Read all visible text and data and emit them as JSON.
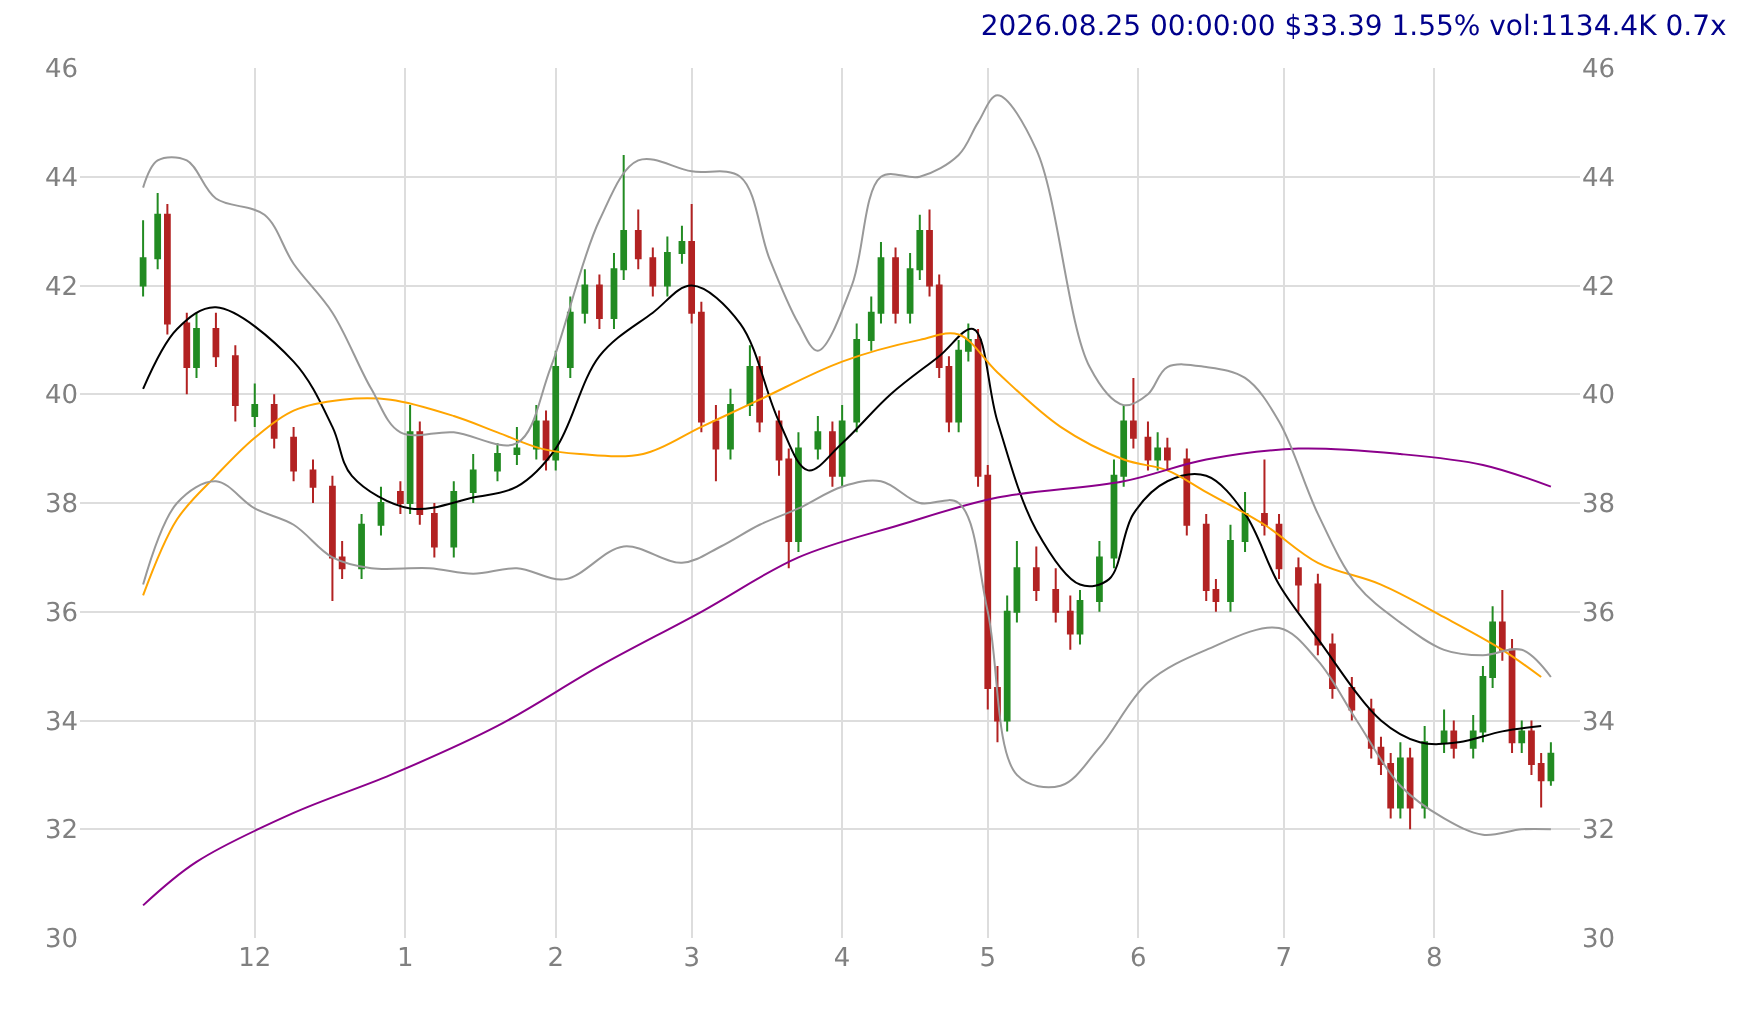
{
  "chart_data": {
    "type": "candlestick",
    "title": "2026.08.25 00:00:00 $33.39 1.55% vol:1134.4K 0.7x",
    "xlim": [
      "2025-10-26",
      "2026-08-31"
    ],
    "xticks": [
      {
        "value": "2025-12-01",
        "label": "12"
      },
      {
        "value": "2026-01-01",
        "label": "1"
      },
      {
        "value": "2026-02-01",
        "label": "2"
      },
      {
        "value": "2026-03-01",
        "label": "3"
      },
      {
        "value": "2026-04-01",
        "label": "4"
      },
      {
        "value": "2026-05-01",
        "label": "5"
      },
      {
        "value": "2026-06-01",
        "label": "6"
      },
      {
        "value": "2026-07-01",
        "label": "7"
      },
      {
        "value": "2026-08-01",
        "label": "8"
      }
    ],
    "ylim": [
      30,
      46
    ],
    "yticks": [
      30,
      32,
      34,
      36,
      38,
      40,
      42,
      44,
      46
    ],
    "y2lim": [
      30,
      46
    ],
    "y2ticks": [
      30,
      32,
      34,
      36,
      38,
      40,
      42,
      44,
      46
    ],
    "grid": true,
    "series": [
      {
        "type": "candlestick",
        "colors": [
          "#228b22",
          "#228b22",
          "#b22222",
          "#b22222",
          "#228b22",
          "#b22222",
          "#b22222",
          "#228b22",
          "#b22222",
          "#b22222",
          "#b22222",
          "#b22222",
          "#b22222",
          "#228b22",
          "#228b22",
          "#b22222",
          "#228b22",
          "#b22222",
          "#b22222",
          "#228b22",
          "#228b22",
          "#228b22",
          "#228b22",
          "#228b22",
          "#b22222",
          "#228b22",
          "#228b22",
          "#228b22",
          "#b22222",
          "#228b22",
          "#228b22",
          "#b22222",
          "#b22222",
          "#228b22",
          "#228b22",
          "#b22222",
          "#b22222",
          "#b22222",
          "#228b22",
          "#228b22",
          "#b22222",
          "#b22222",
          "#b22222",
          "#228b22",
          "#228b22",
          "#b22222",
          "#228b22",
          "#228b22",
          "#228b22",
          "#228b22",
          "#b22222",
          "#228b22",
          "#228b22",
          "#b22222",
          "#b22222",
          "#b22222",
          "#228b22",
          "#228b22",
          "#b22222",
          "#b22222",
          "#b22222",
          "#228b22",
          "#228b22",
          "#b22222",
          "#b22222",
          "#b22222",
          "#228b22",
          "#228b22",
          "#228b22",
          "#228b22",
          "#b22222",
          "#b22222",
          "#228b22",
          "#b22222",
          "#b22222",
          "#b22222",
          "#b22222",
          "#228b22",
          "#228b22",
          "#b22222",
          "#b22222",
          "#b22222",
          "#b22222",
          "#b22222",
          "#b22222",
          "#b22222",
          "#b22222",
          "#b22222",
          "#228b22",
          "#b22222",
          "#228b22",
          "#228b22",
          "#b22222",
          "#228b22",
          "#228b22",
          "#228b22",
          "#b22222",
          "#b22222",
          "#228b22",
          "#b22222",
          "#b22222",
          "#228b22"
        ],
        "x": [
          "2025-11-08",
          "2025-11-11",
          "2025-11-13",
          "2025-11-17",
          "2025-11-19",
          "2025-11-23",
          "2025-11-27",
          "2025-12-01",
          "2025-12-05",
          "2025-12-09",
          "2025-12-13",
          "2025-12-17",
          "2025-12-19",
          "2025-12-23",
          "2025-12-27",
          "2025-12-31",
          "2026-01-02",
          "2026-01-04",
          "2026-01-07",
          "2026-01-11",
          "2026-01-15",
          "2026-01-20",
          "2026-01-24",
          "2026-01-28",
          "2026-01-30",
          "2026-02-01",
          "2026-02-04",
          "2026-02-07",
          "2026-02-10",
          "2026-02-13",
          "2026-02-15",
          "2026-02-18",
          "2026-02-21",
          "2026-02-24",
          "2026-02-27",
          "2026-03-01",
          "2026-03-03",
          "2026-03-06",
          "2026-03-09",
          "2026-03-13",
          "2026-03-15",
          "2026-03-19",
          "2026-03-21",
          "2026-03-23",
          "2026-03-27",
          "2026-03-30",
          "2026-04-01",
          "2026-04-04",
          "2026-04-07",
          "2026-04-09",
          "2026-04-12",
          "2026-04-15",
          "2026-04-17",
          "2026-04-19",
          "2026-04-21",
          "2026-04-23",
          "2026-04-25",
          "2026-04-27",
          "2026-04-29",
          "2026-05-01",
          "2026-05-03",
          "2026-05-05",
          "2026-05-07",
          "2026-05-11",
          "2026-05-15",
          "2026-05-18",
          "2026-05-20",
          "2026-05-24",
          "2026-05-27",
          "2026-05-29",
          "2026-05-31",
          "2026-06-03",
          "2026-06-05",
          "2026-06-07",
          "2026-06-11",
          "2026-06-15",
          "2026-06-17",
          "2026-06-20",
          "2026-06-23",
          "2026-06-27",
          "2026-06-30",
          "2026-07-04",
          "2026-07-08",
          "2026-07-11",
          "2026-07-15",
          "2026-07-19",
          "2026-07-21",
          "2026-07-23",
          "2026-07-25",
          "2026-07-27",
          "2026-07-30",
          "2026-08-03",
          "2026-08-05",
          "2026-08-09",
          "2026-08-11",
          "2026-08-13",
          "2026-08-15",
          "2026-08-17",
          "2026-08-19",
          "2026-08-21",
          "2026-08-23",
          "2026-08-25"
        ],
        "ohlc": [
          [
            42.0,
            43.2,
            41.8,
            42.5
          ],
          [
            42.5,
            43.7,
            42.3,
            43.3
          ],
          [
            43.3,
            43.5,
            41.1,
            41.3
          ],
          [
            41.3,
            41.5,
            40.0,
            40.5
          ],
          [
            40.5,
            41.5,
            40.3,
            41.2
          ],
          [
            41.2,
            41.5,
            40.5,
            40.7
          ],
          [
            40.7,
            40.9,
            39.5,
            39.8
          ],
          [
            39.6,
            40.2,
            39.4,
            39.8
          ],
          [
            39.8,
            40.0,
            39.0,
            39.2
          ],
          [
            39.2,
            39.4,
            38.4,
            38.6
          ],
          [
            38.6,
            38.8,
            38.0,
            38.3
          ],
          [
            38.3,
            38.5,
            36.2,
            37.0
          ],
          [
            37.0,
            37.3,
            36.6,
            36.8
          ],
          [
            36.8,
            37.8,
            36.6,
            37.6
          ],
          [
            37.6,
            38.3,
            37.4,
            38.0
          ],
          [
            38.2,
            38.4,
            37.8,
            38.0
          ],
          [
            38.0,
            39.8,
            37.8,
            39.3
          ],
          [
            39.3,
            39.5,
            37.6,
            37.8
          ],
          [
            37.8,
            38.0,
            37.0,
            37.2
          ],
          [
            37.2,
            38.4,
            37.0,
            38.2
          ],
          [
            38.2,
            38.9,
            38.0,
            38.6
          ],
          [
            38.6,
            39.1,
            38.4,
            38.9
          ],
          [
            38.9,
            39.4,
            38.7,
            39.0
          ],
          [
            39.0,
            39.8,
            38.8,
            39.5
          ],
          [
            39.5,
            39.7,
            38.6,
            38.8
          ],
          [
            38.8,
            40.8,
            38.6,
            40.5
          ],
          [
            40.5,
            41.8,
            40.3,
            41.5
          ],
          [
            41.5,
            42.3,
            41.3,
            42.0
          ],
          [
            42.0,
            42.2,
            41.2,
            41.4
          ],
          [
            41.4,
            42.6,
            41.2,
            42.3
          ],
          [
            42.3,
            44.4,
            42.1,
            43.0
          ],
          [
            43.0,
            43.4,
            42.3,
            42.5
          ],
          [
            42.5,
            42.7,
            41.8,
            42.0
          ],
          [
            42.0,
            42.9,
            41.8,
            42.6
          ],
          [
            42.6,
            43.1,
            42.4,
            42.8
          ],
          [
            42.8,
            43.5,
            41.3,
            41.5
          ],
          [
            41.5,
            41.7,
            39.3,
            39.5
          ],
          [
            39.5,
            39.8,
            38.4,
            39.0
          ],
          [
            39.0,
            40.1,
            38.8,
            39.8
          ],
          [
            39.8,
            40.9,
            39.6,
            40.5
          ],
          [
            40.5,
            40.7,
            39.3,
            39.5
          ],
          [
            39.5,
            39.7,
            38.5,
            38.8
          ],
          [
            38.8,
            39.0,
            36.8,
            37.3
          ],
          [
            37.3,
            39.3,
            37.1,
            39.0
          ],
          [
            39.0,
            39.6,
            38.8,
            39.3
          ],
          [
            39.3,
            39.5,
            38.3,
            38.5
          ],
          [
            38.5,
            39.8,
            38.3,
            39.5
          ],
          [
            39.5,
            41.3,
            39.3,
            41.0
          ],
          [
            41.0,
            41.8,
            40.8,
            41.5
          ],
          [
            41.5,
            42.8,
            41.3,
            42.5
          ],
          [
            42.5,
            42.7,
            41.3,
            41.5
          ],
          [
            41.5,
            42.6,
            41.3,
            42.3
          ],
          [
            42.3,
            43.3,
            42.1,
            43.0
          ],
          [
            43.0,
            43.4,
            41.8,
            42.0
          ],
          [
            42.0,
            42.2,
            40.3,
            40.5
          ],
          [
            40.5,
            40.7,
            39.3,
            39.5
          ],
          [
            39.5,
            41.0,
            39.3,
            40.8
          ],
          [
            40.8,
            41.3,
            40.6,
            41.0
          ],
          [
            41.0,
            41.2,
            38.3,
            38.5
          ],
          [
            38.5,
            38.7,
            34.2,
            34.6
          ],
          [
            34.6,
            35.0,
            33.6,
            34.0
          ],
          [
            34.0,
            36.3,
            33.8,
            36.0
          ],
          [
            36.0,
            37.3,
            35.8,
            36.8
          ],
          [
            36.8,
            37.2,
            36.2,
            36.4
          ],
          [
            36.4,
            36.8,
            35.8,
            36.0
          ],
          [
            36.0,
            36.3,
            35.3,
            35.6
          ],
          [
            35.6,
            36.4,
            35.4,
            36.2
          ],
          [
            36.2,
            37.3,
            36.0,
            37.0
          ],
          [
            37.0,
            38.8,
            36.8,
            38.5
          ],
          [
            38.5,
            39.8,
            38.3,
            39.5
          ],
          [
            39.5,
            40.3,
            39.0,
            39.2
          ],
          [
            39.2,
            39.5,
            38.6,
            38.8
          ],
          [
            38.8,
            39.3,
            38.6,
            39.0
          ],
          [
            39.0,
            39.2,
            38.6,
            38.8
          ],
          [
            38.8,
            39.0,
            37.4,
            37.6
          ],
          [
            37.6,
            37.8,
            36.2,
            36.4
          ],
          [
            36.4,
            36.6,
            36.0,
            36.2
          ],
          [
            36.2,
            37.6,
            36.0,
            37.3
          ],
          [
            37.3,
            38.2,
            37.1,
            37.8
          ],
          [
            37.8,
            38.8,
            37.4,
            37.6
          ],
          [
            37.6,
            37.8,
            36.6,
            36.8
          ],
          [
            36.8,
            37.0,
            36.0,
            36.5
          ],
          [
            36.5,
            36.7,
            35.2,
            35.4
          ],
          [
            35.4,
            35.6,
            34.4,
            34.6
          ],
          [
            34.6,
            34.8,
            34.0,
            34.2
          ],
          [
            34.2,
            34.4,
            33.3,
            33.5
          ],
          [
            33.5,
            33.7,
            33.0,
            33.2
          ],
          [
            33.2,
            33.4,
            32.2,
            32.4
          ],
          [
            32.4,
            33.6,
            32.2,
            33.3
          ],
          [
            33.3,
            33.5,
            32.0,
            32.4
          ],
          [
            32.4,
            33.9,
            32.2,
            33.6
          ],
          [
            33.6,
            34.2,
            33.4,
            33.8
          ],
          [
            33.8,
            34.0,
            33.3,
            33.5
          ],
          [
            33.5,
            34.1,
            33.3,
            33.8
          ],
          [
            33.8,
            35.0,
            33.6,
            34.8
          ],
          [
            34.8,
            36.1,
            34.6,
            35.8
          ],
          [
            35.8,
            36.4,
            35.1,
            35.3
          ],
          [
            35.3,
            35.5,
            33.4,
            33.6
          ],
          [
            33.6,
            34.0,
            33.4,
            33.8
          ],
          [
            33.8,
            34.0,
            33.0,
            33.2
          ],
          [
            33.2,
            33.4,
            32.4,
            32.9
          ],
          [
            32.9,
            33.6,
            32.8,
            33.39
          ]
        ]
      },
      {
        "type": "line",
        "color": "#000000",
        "x": [
          "2025-11-08",
          "2025-11-15",
          "2025-11-23",
          "2025-12-09",
          "2025-12-17",
          "2025-12-21",
          "2026-01-02",
          "2026-01-15",
          "2026-01-24",
          "2026-02-01",
          "2026-02-10",
          "2026-02-21",
          "2026-03-01",
          "2026-03-11",
          "2026-03-19",
          "2026-03-25",
          "2026-04-01",
          "2026-04-11",
          "2026-04-21",
          "2026-04-28",
          "2026-05-03",
          "2026-05-11",
          "2026-05-20",
          "2026-05-26",
          "2026-05-31",
          "2026-06-07",
          "2026-06-15",
          "2026-06-23",
          "2026-06-30",
          "2026-07-08",
          "2026-07-21",
          "2026-07-29",
          "2026-08-06",
          "2026-08-15",
          "2026-08-23"
        ],
        "values": [
          40.1,
          41.2,
          41.6,
          40.6,
          39.4,
          38.5,
          37.9,
          38.1,
          38.3,
          39.0,
          40.7,
          41.5,
          42.0,
          41.3,
          39.5,
          38.6,
          39.1,
          40.0,
          40.7,
          41.2,
          39.5,
          37.5,
          36.5,
          36.6,
          37.8,
          38.4,
          38.5,
          37.8,
          36.5,
          35.5,
          34.0,
          33.6,
          33.6,
          33.8,
          33.9
        ]
      },
      {
        "type": "line",
        "color": "#ffa500",
        "x": [
          "2025-11-08",
          "2025-11-15",
          "2025-11-23",
          "2025-12-01",
          "2025-12-09",
          "2025-12-19",
          "2025-12-29",
          "2026-01-11",
          "2026-01-20",
          "2026-01-29",
          "2026-02-06",
          "2026-02-19",
          "2026-03-03",
          "2026-03-15",
          "2026-04-01",
          "2026-04-17",
          "2026-04-25",
          "2026-05-03",
          "2026-05-16",
          "2026-05-29",
          "2026-06-07",
          "2026-06-15",
          "2026-06-27",
          "2026-07-08",
          "2026-07-21",
          "2026-08-03",
          "2026-08-15",
          "2026-08-23"
        ],
        "values": [
          36.3,
          37.7,
          38.5,
          39.2,
          39.7,
          39.9,
          39.9,
          39.6,
          39.3,
          39.0,
          38.9,
          38.9,
          39.4,
          39.9,
          40.6,
          41.0,
          41.1,
          40.4,
          39.4,
          38.8,
          38.6,
          38.2,
          37.6,
          36.9,
          36.5,
          35.9,
          35.3,
          34.8
        ]
      },
      {
        "type": "line",
        "color": "#8b008b",
        "x": [
          "2025-11-08",
          "2025-11-19",
          "2025-12-09",
          "2025-12-29",
          "2026-01-20",
          "2026-02-10",
          "2026-03-03",
          "2026-03-23",
          "2026-04-13",
          "2026-05-03",
          "2026-05-29",
          "2026-06-15",
          "2026-07-04",
          "2026-07-25",
          "2026-08-11",
          "2026-08-25"
        ],
        "values": [
          30.6,
          31.4,
          32.3,
          33.0,
          33.9,
          35.0,
          36.0,
          37.0,
          37.6,
          38.1,
          38.4,
          38.8,
          39.0,
          38.9,
          38.7,
          38.3
        ]
      },
      {
        "type": "line",
        "color": "#999999",
        "x": [
          "2025-11-08",
          "2025-11-11",
          "2025-11-17",
          "2025-11-23",
          "2025-12-03",
          "2025-12-09",
          "2025-12-17",
          "2025-12-25",
          "2025-12-31",
          "2026-01-11",
          "2026-01-24",
          "2026-01-31",
          "2026-02-10",
          "2026-02-18",
          "2026-03-01",
          "2026-03-11",
          "2026-03-17",
          "2026-03-23",
          "2026-03-27",
          "2026-04-03",
          "2026-04-09",
          "2026-04-17",
          "2026-04-25",
          "2026-04-29",
          "2026-05-03",
          "2026-05-11",
          "2026-05-22",
          "2026-05-29",
          "2026-06-03",
          "2026-06-07",
          "2026-06-15",
          "2026-06-23",
          "2026-06-30",
          "2026-07-08",
          "2026-07-16",
          "2026-07-25",
          "2026-08-03",
          "2026-08-11",
          "2026-08-19",
          "2026-08-25"
        ],
        "values": [
          43.8,
          44.3,
          44.3,
          43.6,
          43.3,
          42.4,
          41.5,
          40.1,
          39.3,
          39.3,
          39.1,
          40.5,
          43.2,
          44.3,
          44.1,
          44.0,
          42.5,
          41.3,
          40.8,
          42.0,
          44.0,
          44.0,
          44.4,
          45.0,
          45.5,
          44.5,
          40.5,
          39.8,
          40.0,
          40.5,
          40.5,
          40.3,
          39.5,
          37.8,
          36.5,
          35.8,
          35.3,
          35.2,
          35.3,
          34.8
        ]
      },
      {
        "type": "line",
        "color": "#999999",
        "x": [
          "2025-11-08",
          "2025-11-15",
          "2025-11-23",
          "2025-12-01",
          "2025-12-09",
          "2025-12-17",
          "2025-12-25",
          "2026-01-06",
          "2026-01-15",
          "2026-01-24",
          "2026-02-03",
          "2026-02-15",
          "2026-02-27",
          "2026-03-07",
          "2026-03-15",
          "2026-03-23",
          "2026-04-01",
          "2026-04-09",
          "2026-04-17",
          "2026-04-25",
          "2026-05-01",
          "2026-05-07",
          "2026-05-16",
          "2026-05-24",
          "2026-06-03",
          "2026-06-15",
          "2026-06-30",
          "2026-07-08",
          "2026-07-16",
          "2026-07-25",
          "2026-08-03",
          "2026-08-11",
          "2026-08-19",
          "2026-08-25"
        ],
        "values": [
          36.5,
          38.0,
          38.4,
          37.9,
          37.6,
          37.0,
          36.8,
          36.8,
          36.7,
          36.8,
          36.6,
          37.2,
          36.9,
          37.2,
          37.6,
          37.9,
          38.3,
          38.4,
          38.0,
          38.0,
          36.0,
          33.0,
          32.8,
          33.5,
          34.7,
          35.3,
          35.7,
          35.1,
          34.0,
          32.8,
          32.2,
          31.9,
          32.0,
          32.0
        ]
      }
    ]
  }
}
